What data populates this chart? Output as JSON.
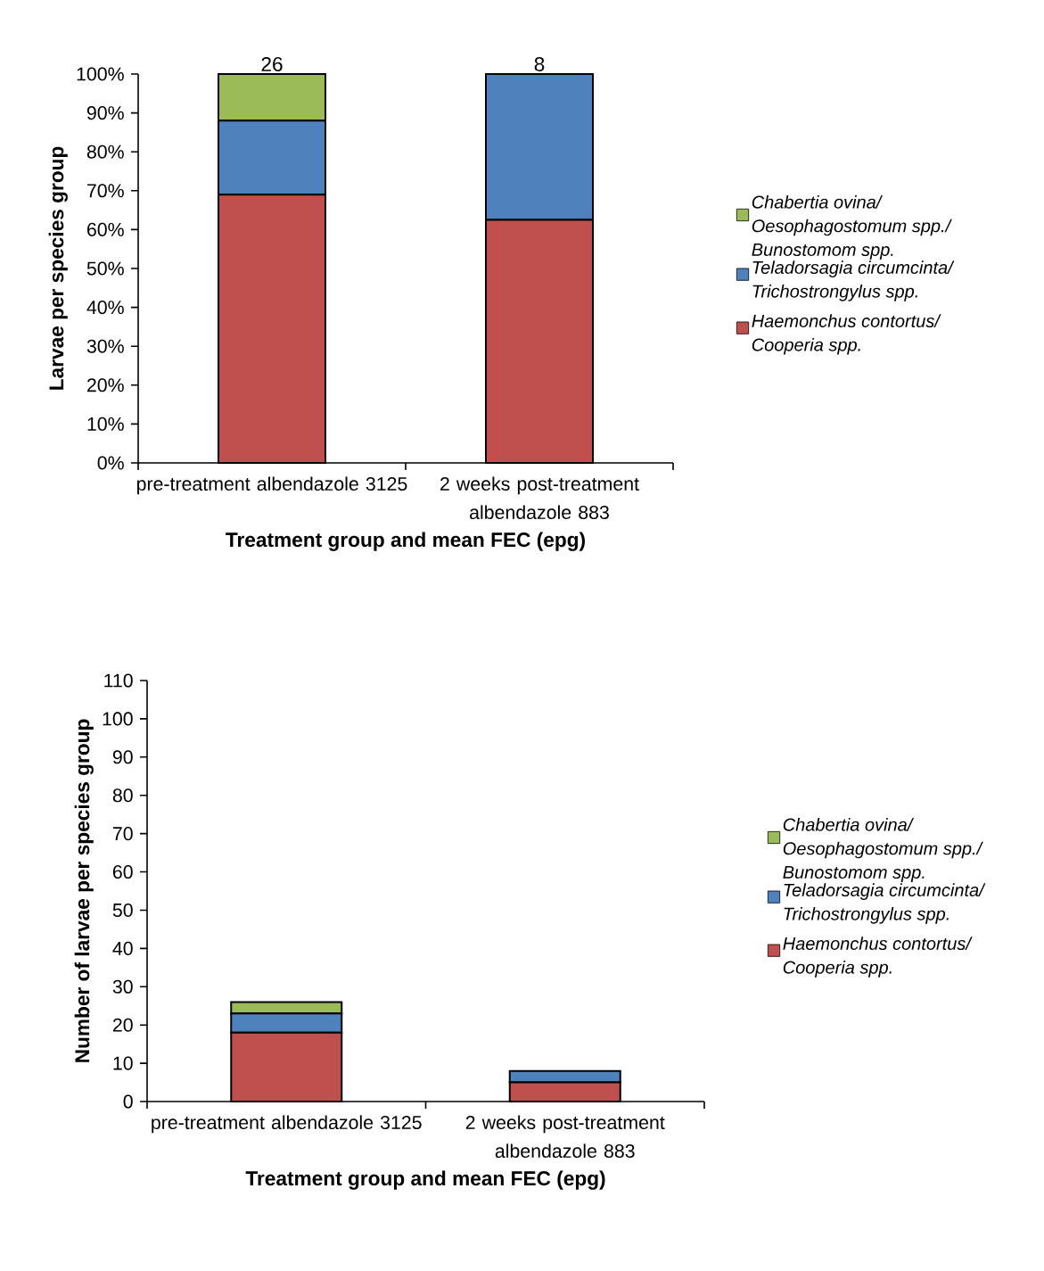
{
  "chart_data": [
    {
      "type": "bar",
      "stacked": true,
      "ylabel": "Larvae per species group",
      "xlabel": "Treatment group and mean FEC (epg)",
      "categories": [
        "pre-treatment  albendazole 3125",
        "2 weeks post-treatment albendazole 883"
      ],
      "series": [
        {
          "name": "Haemonchus contortus/ Cooperia spp.",
          "color": "#c0504d",
          "values": [
            69,
            62.5
          ]
        },
        {
          "name": "Teladorsagia circumcinta/ Trichostrongylus spp.",
          "color": "#4f81bd",
          "values": [
            19,
            37.5
          ]
        },
        {
          "name": "Chabertia ovina/ Oesophagostomum spp./ Bunostomom spp.",
          "color": "#9bbb59",
          "values": [
            12,
            0
          ]
        }
      ],
      "ylim": [
        0,
        100
      ],
      "yticks": [
        {
          "value": 0,
          "label": "0%"
        },
        {
          "value": 10,
          "label": "10%"
        },
        {
          "value": 20,
          "label": "20%"
        },
        {
          "value": 30,
          "label": "30%"
        },
        {
          "value": 40,
          "label": "40%"
        },
        {
          "value": 50,
          "label": "50%"
        },
        {
          "value": 60,
          "label": "60%"
        },
        {
          "value": 70,
          "label": "70%"
        },
        {
          "value": 80,
          "label": "80%"
        },
        {
          "value": 90,
          "label": "90%"
        },
        {
          "value": 100,
          "label": "100%"
        }
      ],
      "annotations": [
        "26",
        "8"
      ],
      "legend": "right"
    },
    {
      "type": "bar",
      "stacked": true,
      "ylabel": "Number of larvae per species group",
      "xlabel": "Treatment group and mean FEC (epg)",
      "categories": [
        "pre-treatment  albendazole 3125",
        "2 weeks post-treatment albendazole 883"
      ],
      "series": [
        {
          "name": "Haemonchus contortus/ Cooperia spp.",
          "color": "#c0504d",
          "values": [
            18,
            5
          ]
        },
        {
          "name": "Teladorsagia circumcinta/ Trichostrongylus spp.",
          "color": "#4f81bd",
          "values": [
            5,
            3
          ]
        },
        {
          "name": "Chabertia ovina/ Oesophagostomum spp./ Bunostomom spp.",
          "color": "#9bbb59",
          "values": [
            3,
            0
          ]
        }
      ],
      "ylim": [
        0,
        110
      ],
      "yticks": [
        0,
        10,
        20,
        30,
        40,
        50,
        60,
        70,
        80,
        90,
        100,
        110
      ],
      "legend": "right"
    }
  ]
}
